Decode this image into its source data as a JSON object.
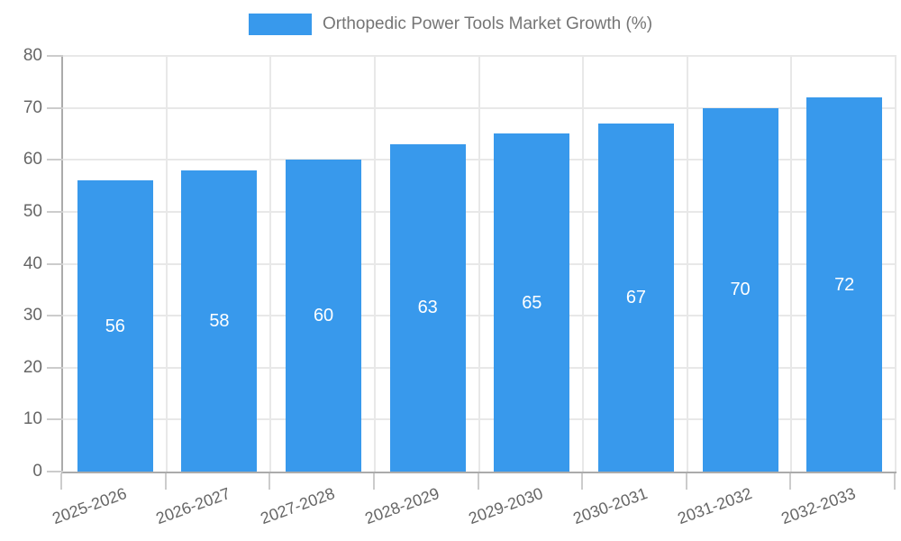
{
  "legend": {
    "label": "Orthopedic Power Tools Market Growth (%)"
  },
  "colors": {
    "bar": "#3899ec",
    "axis": "#ababab",
    "grid": "#e8e8e8",
    "tick": "#cccccc",
    "tick_label": "#666666",
    "legend_text": "#757575",
    "bar_label": "#ffffff",
    "background": "#ffffff"
  },
  "chart_data": {
    "type": "bar",
    "title": "Orthopedic Power Tools Market Growth (%)",
    "categories": [
      "2025-2026",
      "2026-2027",
      "2027-2028",
      "2028-2029",
      "2029-2030",
      "2030-2031",
      "2031-2032",
      "2032-2033"
    ],
    "values": [
      56,
      58,
      60,
      63,
      65,
      67,
      70,
      72
    ],
    "xlabel": "",
    "ylabel": "",
    "ylim": [
      0,
      80
    ],
    "ytick_step": 10,
    "yticks": [
      "0",
      "10",
      "20",
      "30",
      "40",
      "50",
      "60",
      "70",
      "80"
    ],
    "grid": true,
    "legend_position": "top",
    "bar_labels": "inside-middle",
    "x_label_rotation_deg": -20
  }
}
